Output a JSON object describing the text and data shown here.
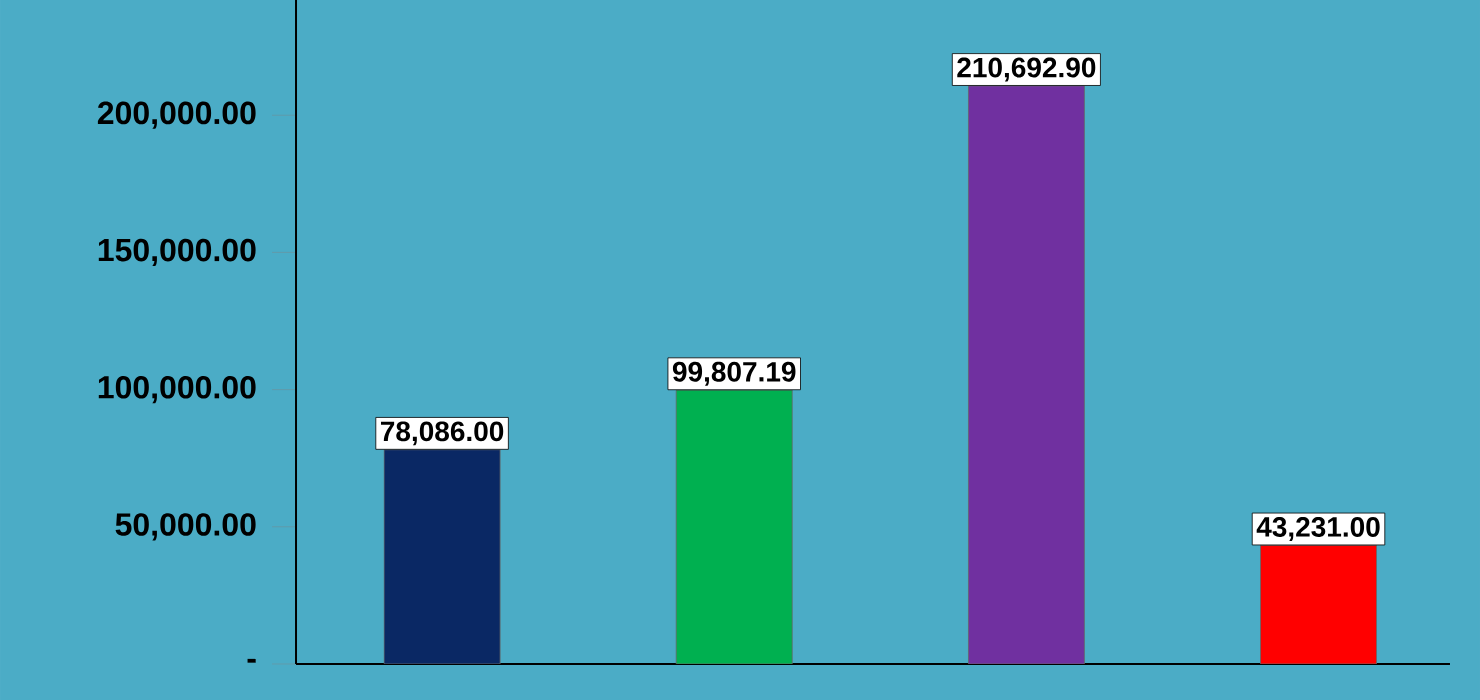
{
  "chart_data": {
    "type": "bar",
    "categories": [
      null,
      null,
      null,
      null
    ],
    "values": [
      78086.0,
      99807.19,
      210692.9,
      43231.0
    ],
    "colors": [
      "#0a2864",
      "#00b050",
      "#7030a0",
      "#ff0000"
    ],
    "value_labels": [
      "78,086.00",
      "99,807.19",
      "210,692.90",
      "43,231.00"
    ],
    "ylim": [
      0,
      242000
    ],
    "yticks": [
      {
        "value": 0,
        "label": "-"
      },
      {
        "value": 50000,
        "label": "50,000.00"
      },
      {
        "value": 100000,
        "label": "100,000.00"
      },
      {
        "value": 150000,
        "label": "150,000.00"
      },
      {
        "value": 200000,
        "label": "200,000.00"
      }
    ],
    "grid": false
  }
}
